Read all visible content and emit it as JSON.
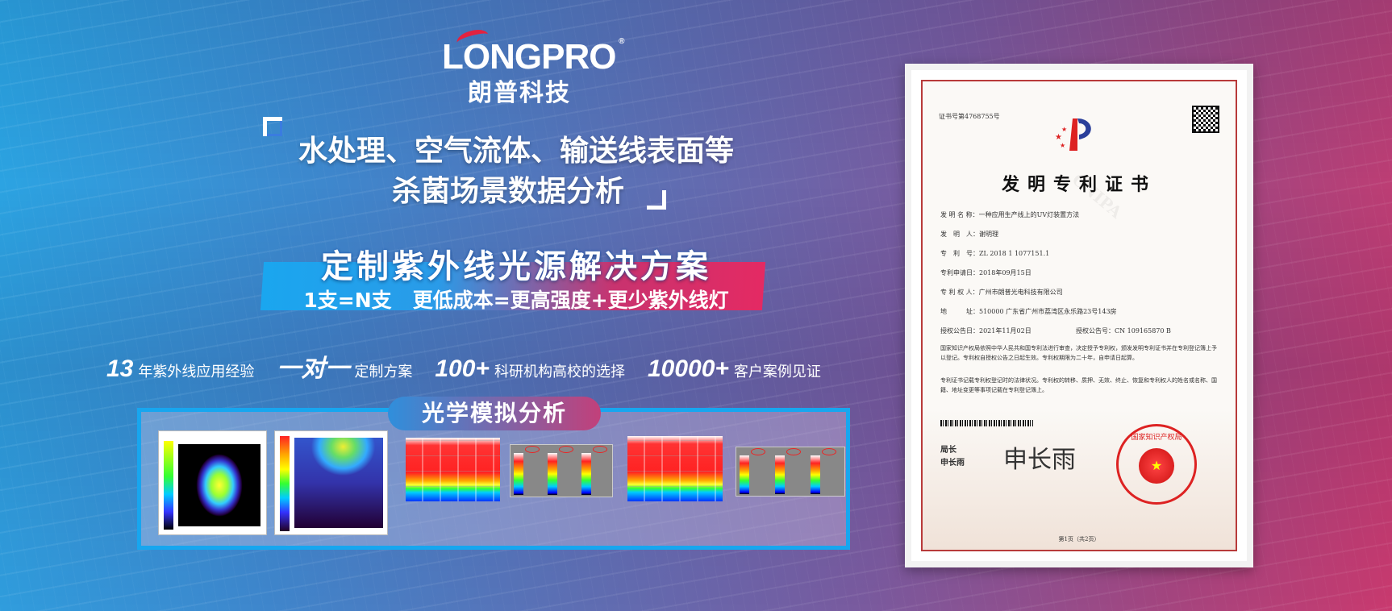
{
  "brand": {
    "logo_text": "LONGPRO",
    "registered_mark": "®",
    "name_cn": "朗普科技",
    "accent_red": "#e3223f"
  },
  "headline": {
    "line1": "水处理、空气流体、输送线表面等",
    "line2": "杀菌场景数据分析"
  },
  "banner": {
    "title": "定制紫外线光源解决方案",
    "subtitle": "1支=N支   更低成本=更高强度+更少紫外线灯",
    "gradient_start": "#1aa6ef",
    "gradient_end": "#e42a63"
  },
  "stats": [
    {
      "value": "13",
      "label": "年紫外线应用经验"
    },
    {
      "value": "一对一",
      "label": "定制方案"
    },
    {
      "value": "100+",
      "label": "科研机构高校的选择"
    },
    {
      "value": "10000+",
      "label": "客户案例见证"
    }
  ],
  "analysis": {
    "title": "光学模拟分析",
    "border_color": "#17a6ef"
  },
  "certificate": {
    "cert_no": "证书号第4768755号",
    "title": "发明专利证书",
    "watermark": "CNIPA",
    "fields": [
      "发 明 名 称：一种应用生产线上的UV灯装置方法",
      "发　明　人：谢明理",
      "专　利　号：ZL 2018 1 1077151.1",
      "专利申请日：2018年09月15日",
      "专 利 权 人：广州市朗普光电科技有限公司",
      "地　　　址：510000 广东省广州市荔湾区永乐路23号143房"
    ],
    "grant_date": "授权公告日：2021年11月02日",
    "grant_no": "授权公告号：CN 109165870 B",
    "paragraph1": "国家知识产权局依照中华人民共和国专利法进行审查，决定授予专利权，颁发发明专利证书并在专利登记簿上予以登记。专利权自授权公告之日起生效。专利权期限为二十年，自申请日起算。",
    "paragraph2": "专利证书记载专利权登记时的法律状况。专利权的转移、质押、无效、终止、恢复和专利权人的姓名或名称、国籍、地址变更等事项记载在专利登记簿上。",
    "signer_title": "局长",
    "signer_name": "申长雨",
    "signature": "申长雨",
    "seal_text": "国家知识产权局",
    "page": "第1页（共2页）"
  }
}
